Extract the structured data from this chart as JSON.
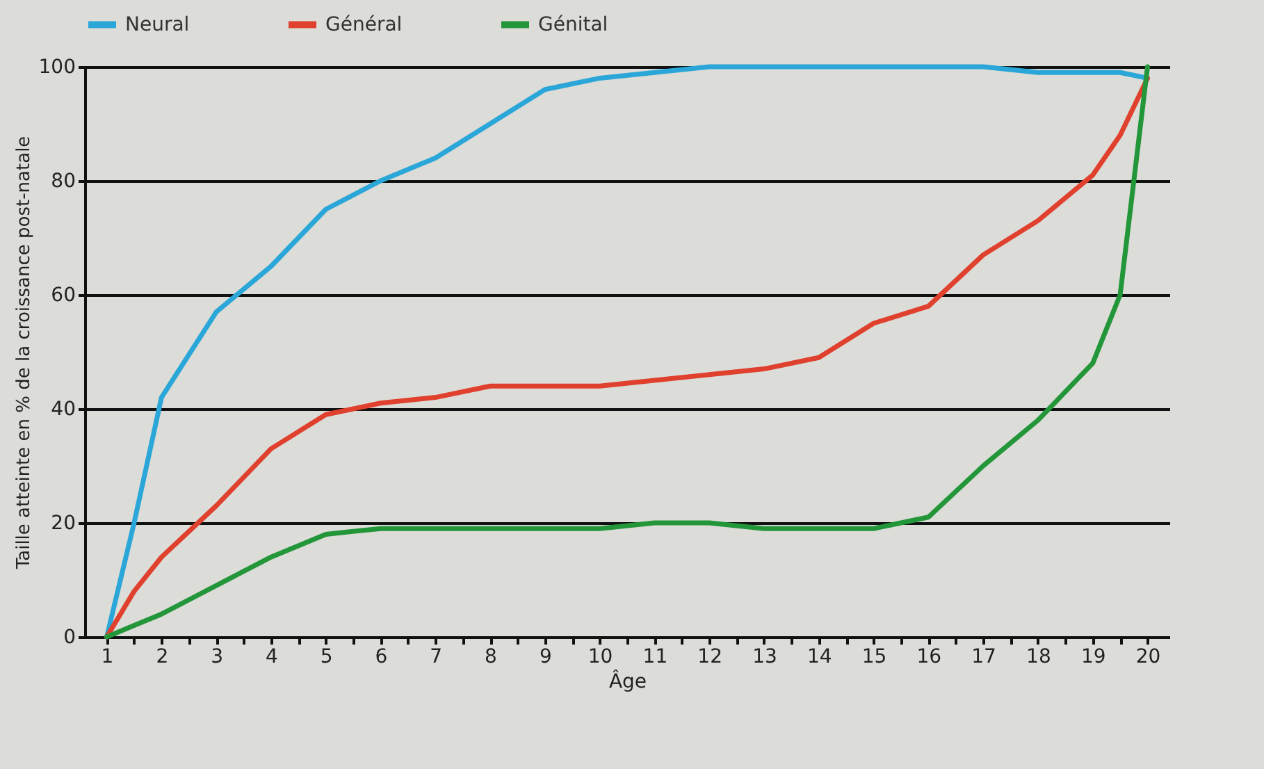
{
  "chart_data": {
    "type": "line",
    "xlabel": "Âge",
    "ylabel": "Taille atteinte en % de la croissance post-natale",
    "x": [
      1,
      1.5,
      2,
      3,
      4,
      5,
      6,
      7,
      8,
      9,
      10,
      11,
      12,
      13,
      14,
      15,
      16,
      17,
      18,
      19,
      19.5,
      20
    ],
    "series": [
      {
        "name": "Neural",
        "color": "#2aa7d8",
        "values": [
          0,
          20,
          42,
          57,
          65,
          75,
          80,
          84,
          90,
          96,
          98,
          99,
          100,
          100,
          100,
          100,
          100,
          100,
          99,
          99,
          99,
          98
        ]
      },
      {
        "name": "Général",
        "color": "#e0412e",
        "values": [
          0,
          8,
          14,
          23,
          33,
          39,
          41,
          42,
          44,
          44,
          44,
          45,
          46,
          47,
          49,
          55,
          58,
          67,
          73,
          81,
          88,
          98
        ]
      },
      {
        "name": "Génital",
        "color": "#23963a",
        "values": [
          0,
          2,
          4,
          9,
          14,
          18,
          19,
          19,
          19,
          19,
          19,
          20,
          20,
          19,
          19,
          19,
          21,
          30,
          38,
          48,
          60,
          100
        ]
      }
    ],
    "xlim": [
      0.6,
      20.4
    ],
    "ylim": [
      0,
      100
    ],
    "xticks": [
      1,
      2,
      3,
      4,
      5,
      6,
      7,
      8,
      9,
      10,
      11,
      12,
      13,
      14,
      15,
      16,
      17,
      18,
      19,
      20,
      {
        "value": 1.5,
        "label": null
      },
      {
        "value": 2.5,
        "label": null
      },
      {
        "value": 3.5,
        "label": null
      },
      {
        "value": 4.5,
        "label": null
      },
      {
        "value": 5.5,
        "label": null
      },
      {
        "value": 6.5,
        "label": null
      },
      {
        "value": 7.5,
        "label": null
      },
      {
        "value": 8.5,
        "label": null
      },
      {
        "value": 9.5,
        "label": null
      },
      {
        "value": 10.5,
        "label": null
      },
      {
        "value": 11.5,
        "label": null
      },
      {
        "value": 12.5,
        "label": null
      },
      {
        "value": 13.5,
        "label": null
      },
      {
        "value": 14.5,
        "label": null
      },
      {
        "value": 15.5,
        "label": null
      },
      {
        "value": 16.5,
        "label": null
      },
      {
        "value": 17.5,
        "label": null
      },
      {
        "value": 18.5,
        "label": null
      },
      {
        "value": 19.5,
        "label": null
      }
    ],
    "yticks": [
      0,
      20,
      40,
      60,
      80,
      100
    ],
    "grid": "y",
    "legend": "top"
  }
}
